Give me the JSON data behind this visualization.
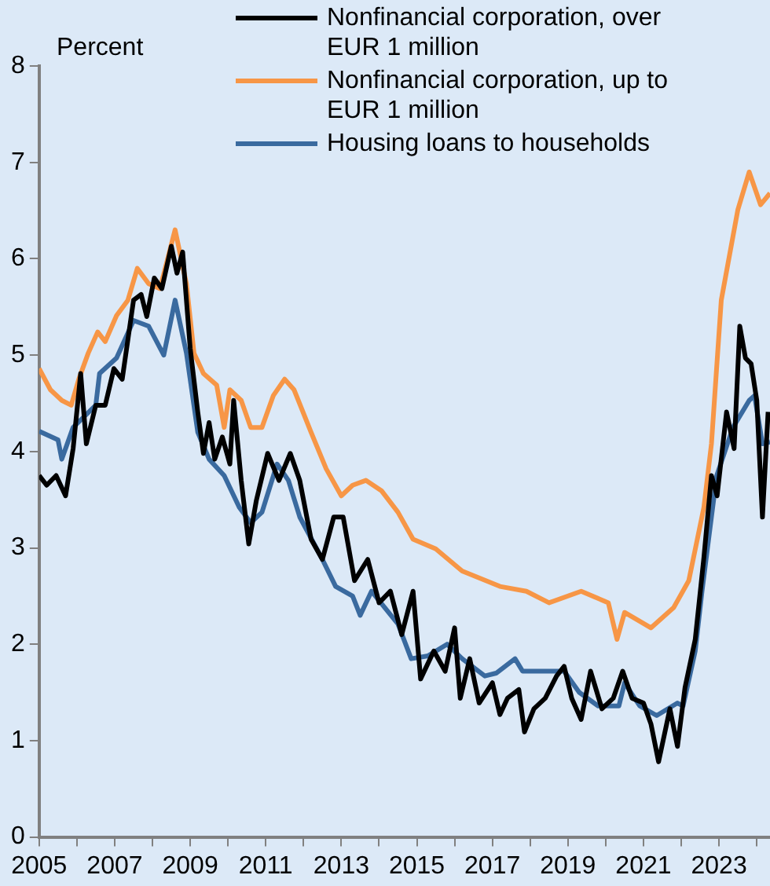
{
  "chart_data": {
    "type": "line",
    "ylabel": "Percent",
    "xlim": [
      2005,
      2024.35
    ],
    "ylim": [
      0,
      8
    ],
    "xticks": [
      2005,
      {
        "value": 2006,
        "label": null
      },
      2007,
      {
        "value": 2008,
        "label": null
      },
      2009,
      {
        "value": 2010,
        "label": null
      },
      2011,
      {
        "value": 2012,
        "label": null
      },
      2013,
      {
        "value": 2014,
        "label": null
      },
      2015,
      {
        "value": 2016,
        "label": null
      },
      2017,
      {
        "value": 2018,
        "label": null
      },
      2019,
      {
        "value": 2020,
        "label": null
      },
      2021,
      {
        "value": 2022,
        "label": null
      },
      2023,
      {
        "value": 2024,
        "label": null
      }
    ],
    "yticks": [
      0,
      1,
      2,
      3,
      4,
      5,
      6,
      7,
      8
    ],
    "grid": false,
    "legend": "top right",
    "marker": "none",
    "line_style": "solid",
    "series": [
      {
        "name": "Nonfinancial corporation, over EUR 1 million",
        "color": "#000000",
        "x": [
          2005.0,
          2005.2,
          2005.45,
          2005.7,
          2005.9,
          2006.1,
          2006.25,
          2006.5,
          2006.75,
          2006.98,
          2007.2,
          2007.5,
          2007.7,
          2007.85,
          2008.05,
          2008.25,
          2008.5,
          2008.65,
          2008.8,
          2009.0,
          2009.2,
          2009.35,
          2009.5,
          2009.65,
          2009.85,
          2010.05,
          2010.15,
          2010.35,
          2010.55,
          2010.75,
          2011.05,
          2011.35,
          2011.65,
          2011.9,
          2012.2,
          2012.5,
          2012.8,
          2013.05,
          2013.35,
          2013.7,
          2014.0,
          2014.3,
          2014.6,
          2014.9,
          2015.1,
          2015.45,
          2015.75,
          2016.0,
          2016.15,
          2016.4,
          2016.65,
          2017.0,
          2017.2,
          2017.4,
          2017.7,
          2017.85,
          2018.1,
          2018.4,
          2018.7,
          2018.9,
          2019.1,
          2019.35,
          2019.6,
          2019.9,
          2020.2,
          2020.45,
          2020.7,
          2021.0,
          2021.2,
          2021.4,
          2021.7,
          2021.9,
          2022.1,
          2022.37,
          2022.6,
          2022.8,
          2022.95,
          2023.2,
          2023.4,
          2023.55,
          2023.7,
          2023.85,
          2024.0,
          2024.15,
          2024.3
        ],
        "values": [
          3.75,
          3.65,
          3.75,
          3.54,
          4.03,
          4.81,
          4.08,
          4.48,
          4.48,
          4.86,
          4.75,
          5.57,
          5.63,
          5.4,
          5.8,
          5.69,
          6.13,
          5.85,
          6.07,
          5.07,
          4.41,
          3.98,
          4.3,
          3.92,
          4.15,
          3.87,
          4.53,
          3.7,
          3.04,
          3.49,
          3.98,
          3.7,
          3.98,
          3.7,
          3.09,
          2.88,
          3.32,
          3.32,
          2.66,
          2.88,
          2.43,
          2.55,
          2.1,
          2.55,
          1.64,
          1.93,
          1.72,
          2.17,
          1.44,
          1.85,
          1.39,
          1.6,
          1.27,
          1.44,
          1.53,
          1.09,
          1.33,
          1.44,
          1.67,
          1.77,
          1.44,
          1.22,
          1.72,
          1.33,
          1.44,
          1.72,
          1.44,
          1.39,
          1.17,
          0.78,
          1.33,
          0.94,
          1.55,
          2.05,
          2.9,
          3.75,
          3.54,
          4.41,
          4.03,
          5.3,
          4.97,
          4.91,
          4.53,
          3.32,
          4.41
        ]
      },
      {
        "name": "Nonfinancial corporation, up to EUR 1 million",
        "color": "#f79646",
        "x": [
          2005.0,
          2005.3,
          2005.6,
          2005.85,
          2006.05,
          2006.3,
          2006.55,
          2006.75,
          2007.05,
          2007.35,
          2007.6,
          2007.9,
          2008.2,
          2008.6,
          2008.9,
          2009.1,
          2009.35,
          2009.7,
          2009.9,
          2010.05,
          2010.35,
          2010.6,
          2010.9,
          2011.2,
          2011.5,
          2011.75,
          2012.2,
          2012.6,
          2013.0,
          2013.3,
          2013.65,
          2014.07,
          2014.5,
          2014.9,
          2015.5,
          2016.2,
          2017.2,
          2017.9,
          2018.5,
          2019.35,
          2020.07,
          2020.3,
          2020.5,
          2021.2,
          2021.8,
          2022.2,
          2022.6,
          2022.8,
          2023.06,
          2023.5,
          2023.8,
          2024.1,
          2024.35
        ],
        "values": [
          4.86,
          4.64,
          4.53,
          4.48,
          4.75,
          5.02,
          5.24,
          5.14,
          5.41,
          5.57,
          5.9,
          5.74,
          5.69,
          6.3,
          5.74,
          5.02,
          4.81,
          4.69,
          4.25,
          4.64,
          4.53,
          4.25,
          4.25,
          4.58,
          4.75,
          4.64,
          4.2,
          3.82,
          3.54,
          3.65,
          3.7,
          3.59,
          3.37,
          3.09,
          2.99,
          2.76,
          2.6,
          2.55,
          2.43,
          2.55,
          2.43,
          2.05,
          2.33,
          2.17,
          2.38,
          2.66,
          3.42,
          4.08,
          5.57,
          6.51,
          6.9,
          6.56,
          6.68
        ]
      },
      {
        "name": "Housing loans to households",
        "color": "#3a6a9f",
        "x": [
          2005.0,
          2005.5,
          2005.6,
          2005.9,
          2006.5,
          2006.6,
          2007.05,
          2007.5,
          2007.9,
          2008.3,
          2008.6,
          2008.9,
          2009.2,
          2009.5,
          2009.9,
          2010.3,
          2010.6,
          2010.9,
          2011.3,
          2011.6,
          2011.9,
          2012.5,
          2012.85,
          2013.3,
          2013.5,
          2013.8,
          2014.5,
          2014.85,
          2015.3,
          2015.8,
          2016.2,
          2016.8,
          2017.1,
          2017.6,
          2017.8,
          2018.3,
          2018.9,
          2019.3,
          2019.8,
          2020.35,
          2020.5,
          2020.9,
          2021.35,
          2021.9,
          2022.05,
          2022.37,
          2022.55,
          2022.8,
          2022.94,
          2023.37,
          2023.8,
          2023.94,
          2024.15,
          2024.35
        ],
        "values": [
          4.21,
          4.12,
          3.92,
          4.25,
          4.48,
          4.81,
          4.97,
          5.36,
          5.3,
          5.0,
          5.57,
          5.02,
          4.2,
          3.92,
          3.75,
          3.42,
          3.26,
          3.37,
          3.87,
          3.7,
          3.32,
          2.88,
          2.6,
          2.5,
          2.3,
          2.55,
          2.21,
          1.85,
          1.88,
          2.0,
          1.85,
          1.67,
          1.7,
          1.85,
          1.72,
          1.72,
          1.72,
          1.5,
          1.36,
          1.36,
          1.6,
          1.36,
          1.26,
          1.39,
          1.36,
          1.93,
          2.55,
          3.32,
          3.75,
          4.25,
          4.53,
          4.58,
          4.08,
          4.1
        ]
      }
    ]
  }
}
